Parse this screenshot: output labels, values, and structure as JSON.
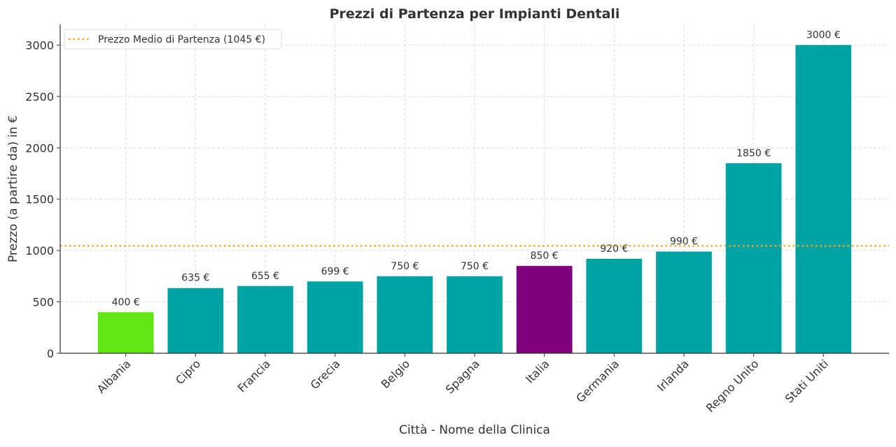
{
  "chart_data": {
    "type": "bar",
    "title": "Prezzi di Partenza per Impianti Dentali",
    "xlabel": "Città - Nome della Clinica",
    "ylabel": "Prezzo (a partire da) in €",
    "categories": [
      "Albania",
      "Cipro",
      "Francia",
      "Grecia",
      "Belgio",
      "Spagna",
      "Italia",
      "Germania",
      "Irlanda",
      "Regno Unito",
      "Stati Uniti"
    ],
    "values": [
      400,
      635,
      655,
      699,
      750,
      750,
      850,
      920,
      990,
      1850,
      3000
    ],
    "data_labels": [
      "400 €",
      "635 €",
      "655 €",
      "699 €",
      "750 €",
      "750 €",
      "850 €",
      "920 €",
      "990 €",
      "1850 €",
      "3000 €"
    ],
    "bar_colors": [
      "#62E514",
      "#00A3A3",
      "#00A3A3",
      "#00A3A3",
      "#00A3A3",
      "#00A3A3",
      "#800080",
      "#00A3A3",
      "#00A3A3",
      "#00A3A3",
      "#00A3A3"
    ],
    "ylim": [
      0,
      3200
    ],
    "yticks": [
      0,
      500,
      1000,
      1500,
      2000,
      2500,
      3000
    ],
    "grid": true,
    "reference_line": {
      "value": 1045,
      "label": "Prezzo Medio di Partenza (1045 €)",
      "color": "#F5A623",
      "style": "dotted"
    },
    "legend_placement": "top-left"
  }
}
